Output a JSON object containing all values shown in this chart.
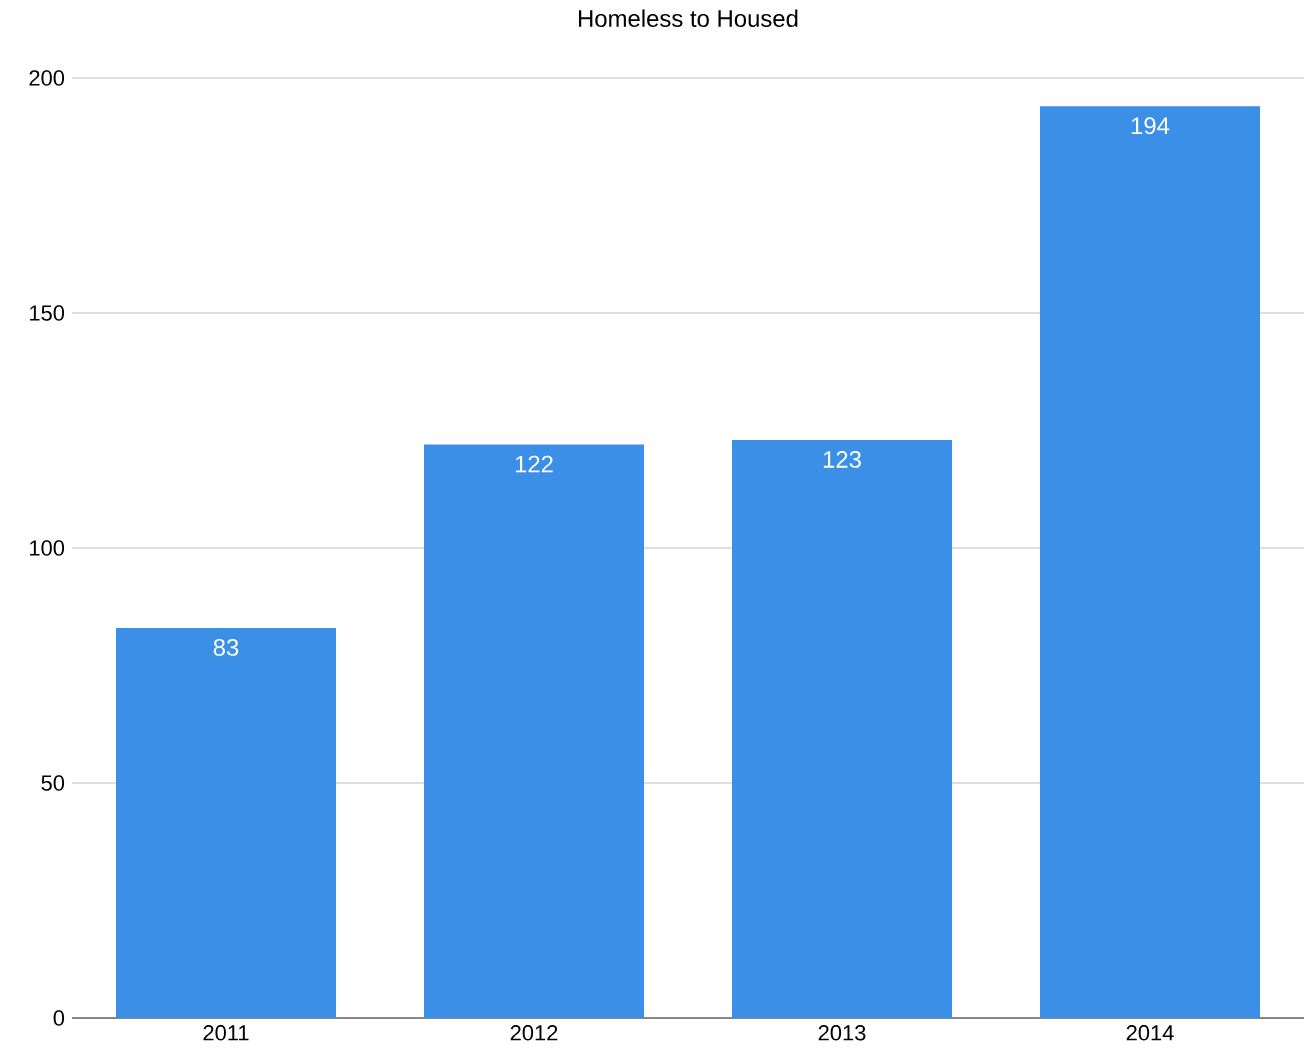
{
  "chart_data": {
    "type": "bar",
    "title": "Homeless to Housed",
    "categories": [
      "2011",
      "2012",
      "2013",
      "2014"
    ],
    "values": [
      83,
      122,
      123,
      194
    ],
    "color": "#3b8fe6",
    "ylim": [
      0,
      200
    ],
    "yticks": [
      0,
      50,
      100,
      150,
      200
    ],
    "grid": "y",
    "data_labels": true
  }
}
